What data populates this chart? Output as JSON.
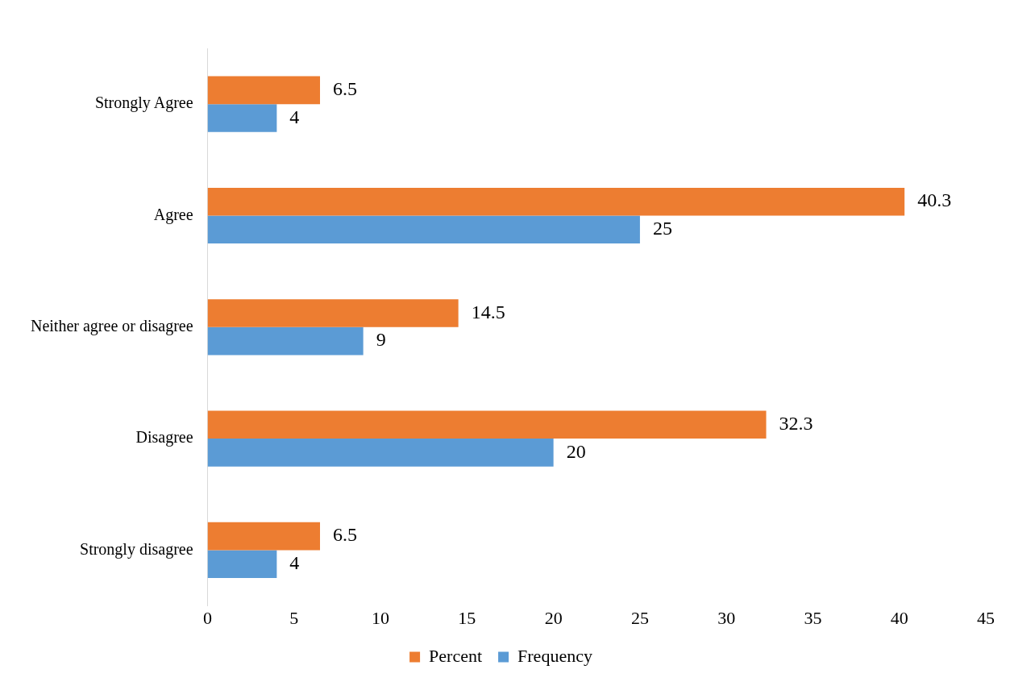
{
  "chart_data": {
    "type": "bar",
    "orientation": "horizontal",
    "categories": [
      "Strongly Agree",
      "Agree",
      "Neither agree or disagree",
      "Disagree",
      "Strongly disagree"
    ],
    "series": [
      {
        "name": "Percent",
        "color": "#ed7d31",
        "values": [
          6.5,
          40.3,
          14.5,
          32.3,
          6.5
        ]
      },
      {
        "name": "Frequency",
        "color": "#5b9bd5",
        "values": [
          4,
          25,
          9,
          20,
          4
        ]
      }
    ],
    "xlim": [
      0,
      45
    ],
    "xticks": [
      0,
      5,
      10,
      15,
      20,
      25,
      30,
      35,
      40,
      45
    ],
    "grid": false,
    "legend": "bottom",
    "data_labels": true
  }
}
